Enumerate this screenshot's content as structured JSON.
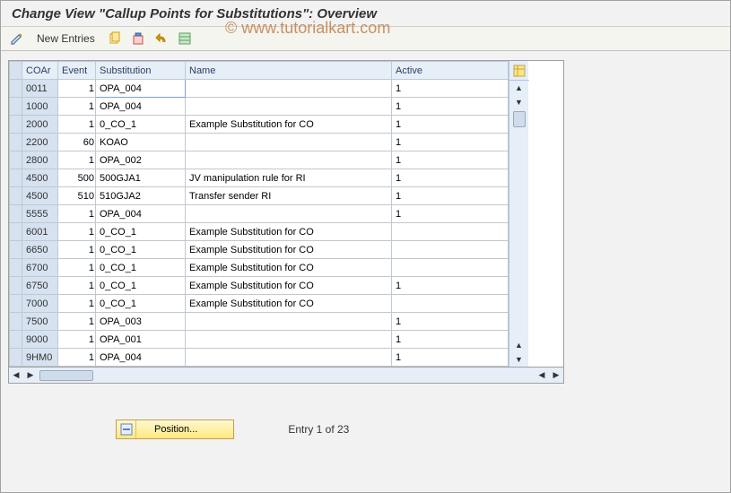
{
  "title": "Change View \"Callup Points for Substitutions\": Overview",
  "watermark": "© www.tutorialkart.com",
  "toolbar": {
    "new_entries": "New Entries"
  },
  "columns": {
    "coar": "COAr",
    "event": "Event",
    "substitution": "Substitution",
    "name": "Name",
    "active": "Active"
  },
  "rows": [
    {
      "coar": "0011",
      "event": "1",
      "sub": "OPA_004",
      "name": "",
      "active": "1"
    },
    {
      "coar": "1000",
      "event": "1",
      "sub": "OPA_004",
      "name": "",
      "active": "1"
    },
    {
      "coar": "2000",
      "event": "1",
      "sub": "0_CO_1",
      "name": "Example Substitution for CO",
      "active": "1"
    },
    {
      "coar": "2200",
      "event": "60",
      "sub": "KOAO",
      "name": "",
      "active": "1"
    },
    {
      "coar": "2800",
      "event": "1",
      "sub": "OPA_002",
      "name": "",
      "active": "1"
    },
    {
      "coar": "4500",
      "event": "500",
      "sub": "500GJA1",
      "name": "JV manipulation rule for RI",
      "active": "1"
    },
    {
      "coar": "4500",
      "event": "510",
      "sub": "510GJA2",
      "name": "Transfer sender RI",
      "active": "1"
    },
    {
      "coar": "5555",
      "event": "1",
      "sub": "OPA_004",
      "name": "",
      "active": "1"
    },
    {
      "coar": "6001",
      "event": "1",
      "sub": "0_CO_1",
      "name": "Example Substitution for CO",
      "active": ""
    },
    {
      "coar": "6650",
      "event": "1",
      "sub": "0_CO_1",
      "name": "Example Substitution for CO",
      "active": ""
    },
    {
      "coar": "6700",
      "event": "1",
      "sub": "0_CO_1",
      "name": "Example Substitution for CO",
      "active": ""
    },
    {
      "coar": "6750",
      "event": "1",
      "sub": "0_CO_1",
      "name": "Example Substitution for CO",
      "active": "1"
    },
    {
      "coar": "7000",
      "event": "1",
      "sub": "0_CO_1",
      "name": "Example Substitution for CO",
      "active": ""
    },
    {
      "coar": "7500",
      "event": "1",
      "sub": "OPA_003",
      "name": "",
      "active": "1"
    },
    {
      "coar": "9000",
      "event": "1",
      "sub": "OPA_001",
      "name": "",
      "active": "1"
    },
    {
      "coar": "9HM0",
      "event": "1",
      "sub": "OPA_004",
      "name": "",
      "active": "1"
    }
  ],
  "footer": {
    "position_label": "Position...",
    "entry_text": "Entry 1 of 23"
  },
  "colors": {
    "header_bg": "#e6eef7",
    "row_sel_bg": "#d6e2f0",
    "border": "#c0c8d0",
    "title_color": "#333333",
    "pos_btn_bg": "#ffe880"
  }
}
